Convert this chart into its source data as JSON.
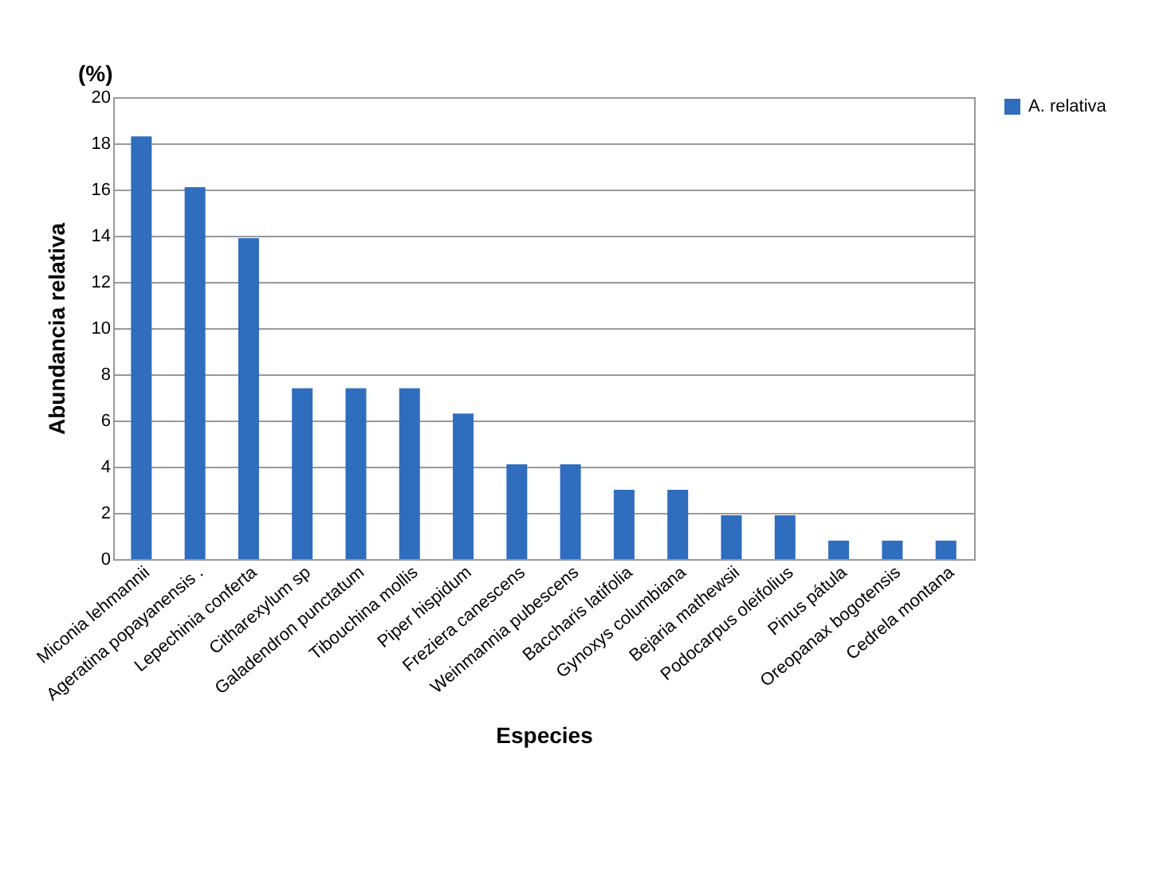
{
  "chart_data": {
    "type": "bar",
    "xlabel": "Especies",
    "ylabel": "Abundancia relativa",
    "annotations": [
      "(%)"
    ],
    "categories": [
      "Miconia lehmannii",
      "Ageratina popayanensis .",
      "Lepechinia conferta",
      "Citharexylum sp",
      "Galadendron punctatum",
      "Tibouchina mollis",
      "Piper hispidum",
      "Freziera canescens",
      "Weinmannia pubescens",
      "Baccharis latifolia",
      "Gynoxys columbiana",
      "Bejaria mathewsii",
      "Podocarpus oleifolius",
      "Pinus pátula",
      "Oreopanax bogotensis",
      "Cedrela montana"
    ],
    "series": [
      {
        "name": "A. relativa",
        "color": "#2f6dbf",
        "values": [
          18.3,
          16.1,
          13.9,
          7.4,
          7.4,
          7.4,
          6.3,
          4.1,
          4.1,
          3.0,
          3.0,
          1.9,
          1.9,
          0.8,
          0.8,
          0.8
        ]
      }
    ],
    "ylim": [
      0,
      20
    ],
    "yticks": [
      0,
      2,
      4,
      6,
      8,
      10,
      12,
      14,
      16,
      18,
      20
    ],
    "grid": "y",
    "legend": "right"
  }
}
